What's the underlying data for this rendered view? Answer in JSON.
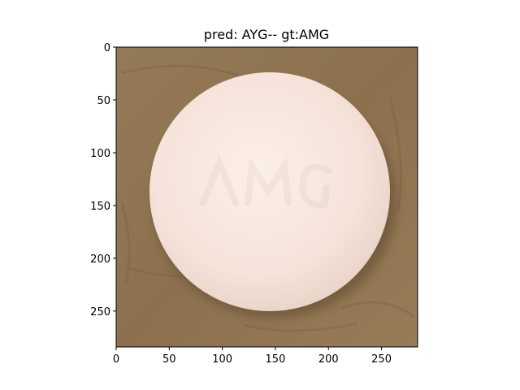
{
  "figure": {
    "title": "pred: AYG-- gt:AMG"
  },
  "axes": {
    "xlim": [
      0,
      284
    ],
    "ylim": [
      284,
      0
    ],
    "y_inverted": true,
    "x_ticks": [
      0,
      50,
      100,
      150,
      200,
      250
    ],
    "y_ticks": [
      0,
      50,
      100,
      150,
      200,
      250
    ],
    "xlabel": "",
    "ylabel": ""
  },
  "image": {
    "subject": "pill",
    "colors": {
      "background": "#8f7350",
      "pill_face": "#f7e6de",
      "pill_edge": "#e3cfc2",
      "shadow": "#6e5538"
    }
  }
}
